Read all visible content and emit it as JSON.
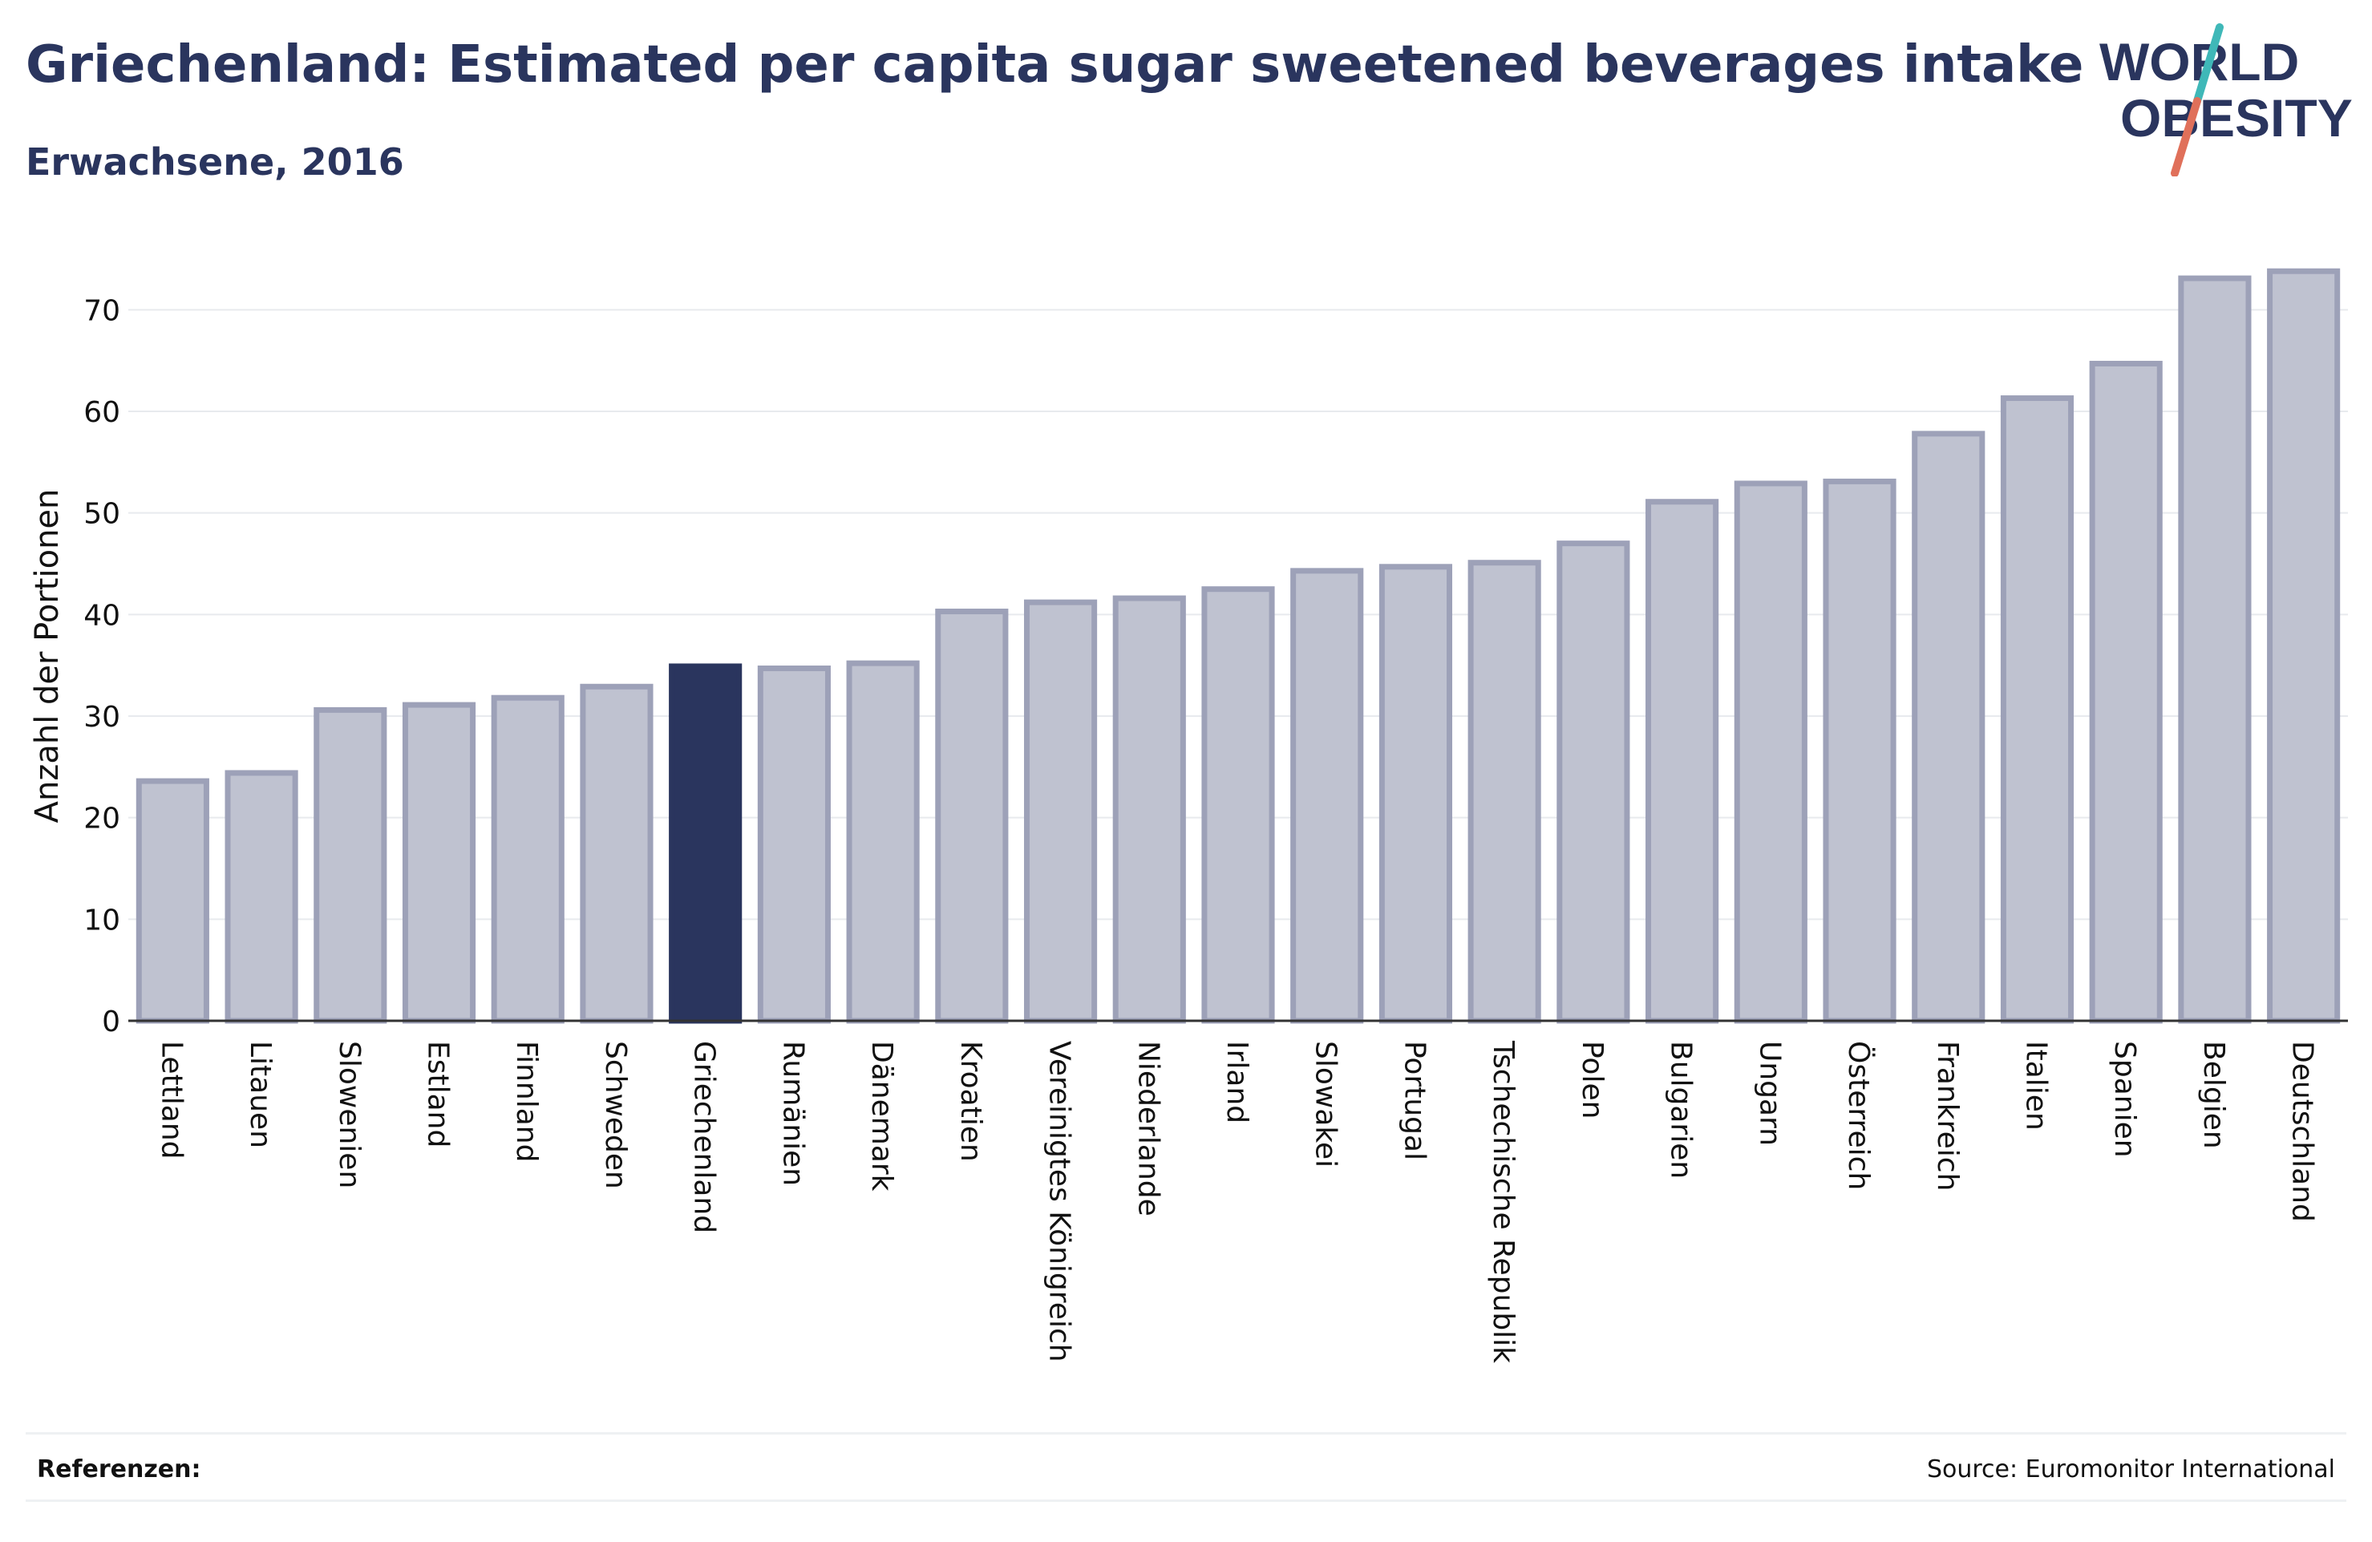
{
  "header": {
    "title": "Griechenland: Estimated per capita sugar sweetened beverages intake",
    "subtitle": "Erwachsene, 2016"
  },
  "logo": {
    "line1": "WORLD",
    "line2": "OBESITY"
  },
  "footer": {
    "references_label": "Referenzen:",
    "source": "Source: Euromonitor International"
  },
  "colors": {
    "highlight": "#2a355e",
    "bar_fill": "#bfc2d0",
    "bar_stroke": "#9da1b8",
    "accent_teal": "#3fb8b8",
    "accent_coral": "#e0705a"
  },
  "chart_data": {
    "type": "bar",
    "title": "Griechenland: Estimated per capita sugar sweetened beverages intake",
    "subtitle": "Erwachsene, 2016",
    "xlabel": "",
    "ylabel": "Anzahl der Portionen",
    "ylim": [
      0,
      75
    ],
    "yticks": [
      0,
      10,
      20,
      30,
      40,
      50,
      60,
      70
    ],
    "grid": true,
    "highlight": "Griechenland",
    "categories": [
      "Lettland",
      "Litauen",
      "Slowenien",
      "Estland",
      "Finnland",
      "Schweden",
      "Griechenland",
      "Rumänien",
      "Dänemark",
      "Kroatien",
      "Vereinigtes Königreich",
      "Niederlande",
      "Irland",
      "Slowakei",
      "Portugal",
      "Tschechische Republik",
      "Polen",
      "Bulgarien",
      "Ungarn",
      "Österreich",
      "Frankreich",
      "Italien",
      "Spanien",
      "Belgien",
      "Deutschland"
    ],
    "values": [
      23.6,
      24.4,
      30.6,
      31.1,
      31.8,
      32.9,
      34.9,
      34.7,
      35.2,
      40.3,
      41.2,
      41.6,
      42.5,
      44.3,
      44.7,
      45.1,
      47.0,
      51.1,
      52.9,
      53.1,
      57.8,
      61.3,
      64.7,
      73.1,
      73.8
    ]
  }
}
